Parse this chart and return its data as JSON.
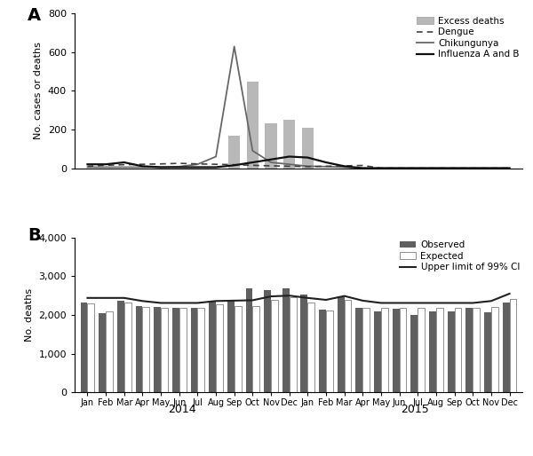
{
  "months_labels": [
    "Jan",
    "Feb",
    "Mar",
    "Apr",
    "May",
    "Jun",
    "Jul",
    "Aug",
    "Sep",
    "Oct",
    "Nov",
    "Dec",
    "Jan",
    "Feb",
    "Mar",
    "Apr",
    "May",
    "Jun",
    "Jul",
    "Aug",
    "Sep",
    "Oct",
    "Nov",
    "Dec"
  ],
  "year_labels": [
    "2014",
    "2015"
  ],
  "excess_deaths": [
    0,
    0,
    0,
    0,
    0,
    0,
    0,
    0,
    170,
    450,
    230,
    250,
    210,
    0,
    0,
    0,
    0,
    0,
    0,
    0,
    0,
    0,
    0,
    0
  ],
  "dengue": [
    10,
    15,
    18,
    20,
    22,
    25,
    22,
    20,
    18,
    15,
    12,
    10,
    8,
    10,
    12,
    14,
    0,
    0,
    0,
    0,
    0,
    0,
    0,
    0
  ],
  "chikungunya": [
    5,
    5,
    5,
    5,
    5,
    8,
    20,
    60,
    630,
    90,
    30,
    20,
    10,
    8,
    5,
    0,
    0,
    0,
    0,
    0,
    0,
    0,
    0,
    0
  ],
  "influenza_ab": [
    20,
    20,
    30,
    10,
    5,
    5,
    5,
    5,
    15,
    30,
    45,
    60,
    55,
    30,
    10,
    0,
    0,
    0,
    0,
    0,
    0,
    0,
    0,
    0
  ],
  "observed": [
    2320,
    2040,
    2360,
    2220,
    2195,
    2190,
    2190,
    2350,
    2400,
    2700,
    2650,
    2700,
    2520,
    2140,
    2490,
    2190,
    2090,
    2160,
    1990,
    2090,
    2090,
    2190,
    2060,
    2320
  ],
  "expected": [
    2300,
    2100,
    2330,
    2210,
    2180,
    2180,
    2180,
    2280,
    2220,
    2220,
    2400,
    2450,
    2320,
    2110,
    2390,
    2190,
    2180,
    2180,
    2180,
    2180,
    2180,
    2180,
    2200,
    2420
  ],
  "upper_ci": [
    2440,
    2440,
    2440,
    2360,
    2310,
    2310,
    2310,
    2360,
    2370,
    2380,
    2480,
    2500,
    2440,
    2390,
    2490,
    2370,
    2310,
    2310,
    2310,
    2310,
    2310,
    2310,
    2360,
    2550
  ],
  "panel_A_ylabel": "No. cases or deaths",
  "panel_B_ylabel": "No. deaths",
  "panel_A_ylim": [
    0,
    800
  ],
  "panel_B_ylim": [
    0,
    4000
  ],
  "excess_color": "#b8b8b8",
  "dengue_color": "#404040",
  "chikungunya_color": "#686868",
  "influenza_color": "#101010",
  "observed_color": "#606060",
  "expected_color": "#ffffff",
  "upper_ci_color": "#202020",
  "legend_A_labels": [
    "Excess deaths",
    "Dengue",
    "Chikungunya",
    "Influenza A and B"
  ],
  "legend_B_labels": [
    "Observed",
    "Expected",
    "Upper limit of 99% CI"
  ]
}
